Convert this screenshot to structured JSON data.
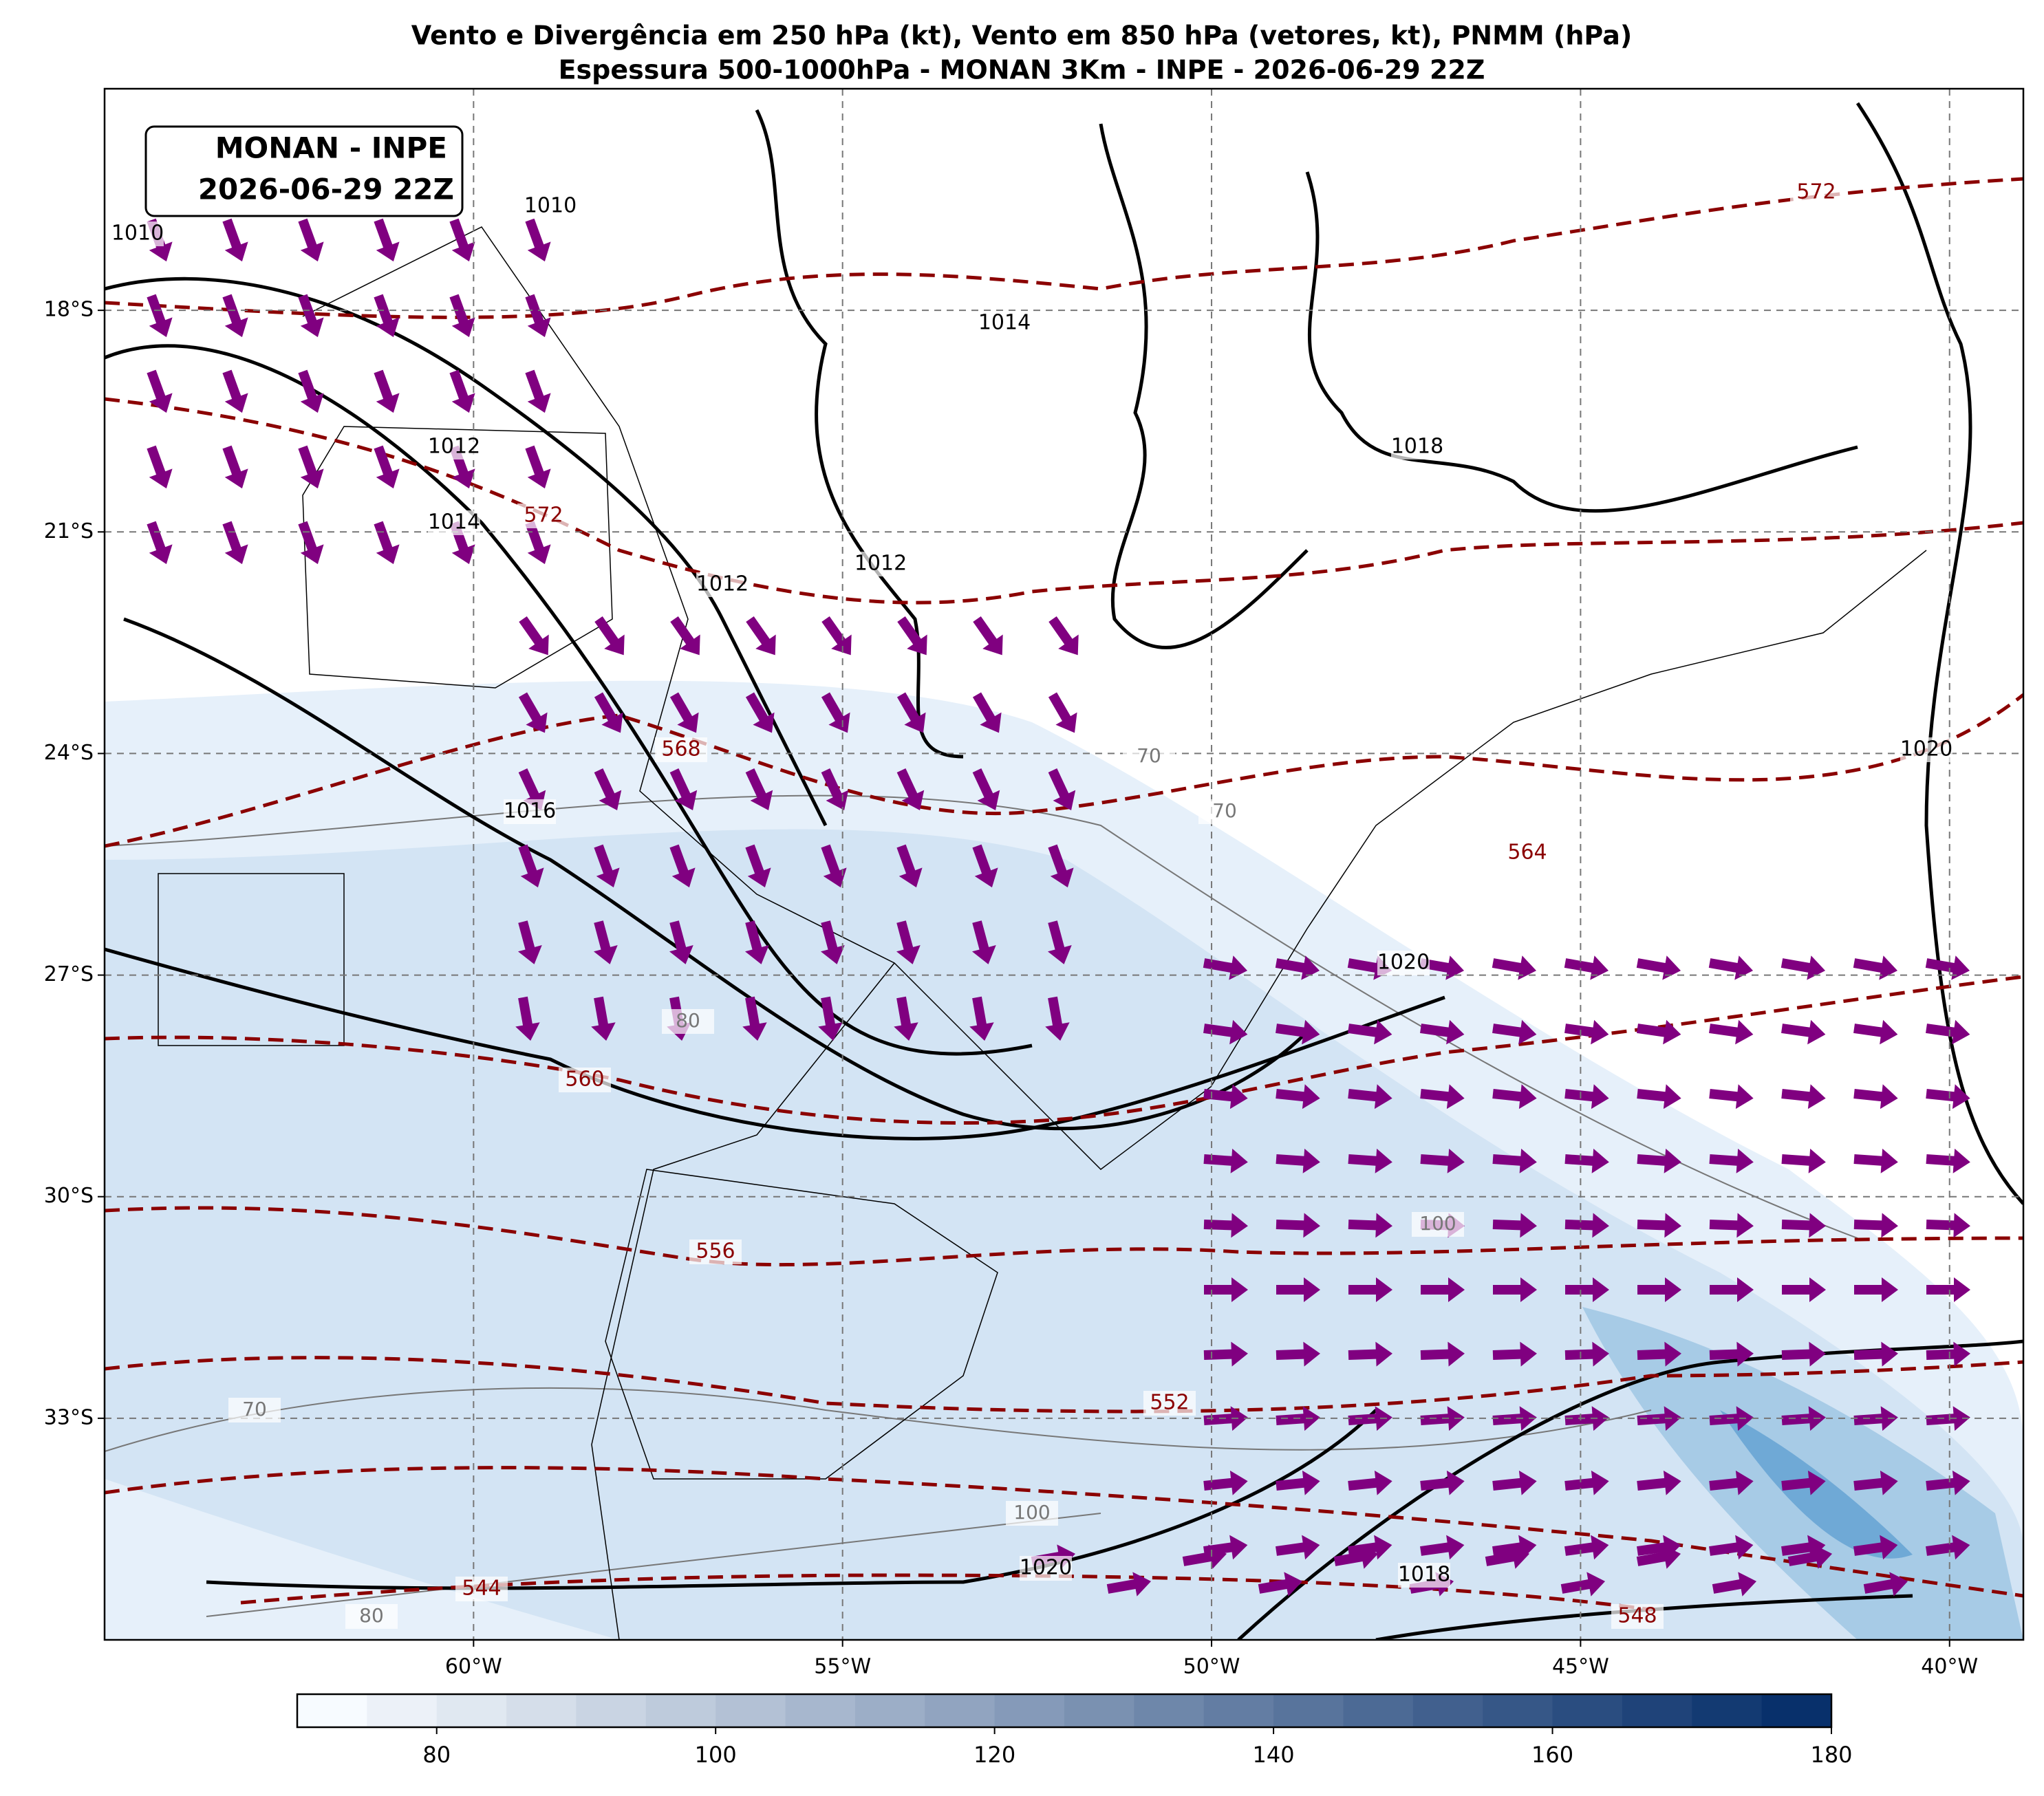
{
  "title": [
    "Vento e Divergência em 250 hPa (kt), Vento em 850 hPa (vetores, kt), PNMM (hPa)",
    "Espessura 500-1000hPa - MONAN 3Km - INPE - 2026-06-29 22Z"
  ],
  "info_box": [
    "MONAN - INPE",
    "2026-06-29 22Z"
  ],
  "map": {
    "xlim": [
      -65,
      -39
    ],
    "ylim": [
      -36,
      -15
    ],
    "xticks": [
      {
        "value": -60,
        "label": "60°W"
      },
      {
        "value": -55,
        "label": "55°W"
      },
      {
        "value": -50,
        "label": "50°W"
      },
      {
        "value": -45,
        "label": "45°W"
      },
      {
        "value": -40,
        "label": "40°W"
      }
    ],
    "yticks": [
      {
        "value": -18,
        "label": "18°S"
      },
      {
        "value": -21,
        "label": "21°S"
      },
      {
        "value": -24,
        "label": "24°S"
      },
      {
        "value": -27,
        "label": "27°S"
      },
      {
        "value": -30,
        "label": "30°S"
      },
      {
        "value": -33,
        "label": "33°S"
      }
    ],
    "isobar_labels": [
      1010,
      1010,
      1012,
      1014,
      1012,
      1012,
      1014,
      1016,
      1018,
      1020,
      1020,
      1020,
      1018
    ],
    "thickness_labels": [
      572,
      572,
      568,
      564,
      560,
      556,
      552,
      548,
      544
    ],
    "wind_labels": [
      70,
      70,
      80,
      80,
      100,
      100,
      70
    ]
  },
  "colorbar": {
    "lim": [
      70,
      180
    ],
    "ticks": [
      80,
      100,
      120,
      140,
      160,
      180
    ]
  }
}
